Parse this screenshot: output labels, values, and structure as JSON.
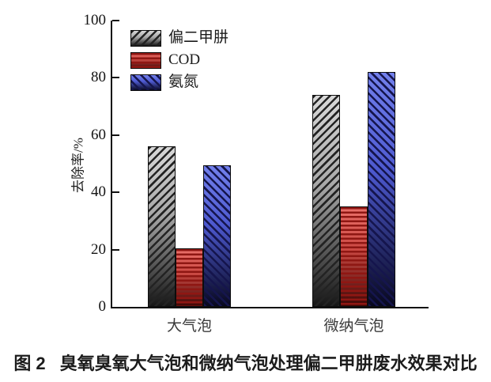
{
  "figure": {
    "caption_label": "图 2",
    "caption_text": "臭氧臭氧大气泡和微纳气泡处理偏二甲肼废水效果对比"
  },
  "chart_data": {
    "type": "bar",
    "title": "",
    "xlabel": "",
    "ylabel": "去除率/%",
    "ylim": [
      0,
      100
    ],
    "yticks": [
      0,
      20,
      40,
      60,
      80,
      100
    ],
    "grid": false,
    "legend_position": "top-left",
    "categories": [
      "大气泡",
      "微纳气泡"
    ],
    "category_keys": [
      "large-bubble",
      "micro-nano-bubble"
    ],
    "series": [
      {
        "key": "udmh",
        "name": "偏二甲肼",
        "values": [
          56,
          74
        ],
        "pattern": "diagonal-up",
        "colors": {
          "top": "#d8d8d8",
          "mid": "#a8a8a8",
          "bottom": "#161616",
          "hatch": "#232323"
        }
      },
      {
        "key": "cod",
        "name": "COD",
        "values": [
          20.5,
          35
        ],
        "pattern": "horizontal",
        "colors": {
          "top": "#e9706a",
          "mid": "#cc4a44",
          "bottom": "#3f0705",
          "hatch": "#8f1713"
        }
      },
      {
        "key": "ammonia-nitrogen",
        "name": "氨氮",
        "values": [
          49.5,
          82
        ],
        "pattern": "diagonal-down",
        "colors": {
          "top": "#7280ec",
          "mid": "#4d59cf",
          "bottom": "#08081e",
          "hatch": "#15154d"
        }
      }
    ],
    "axis_color": "#111111"
  }
}
